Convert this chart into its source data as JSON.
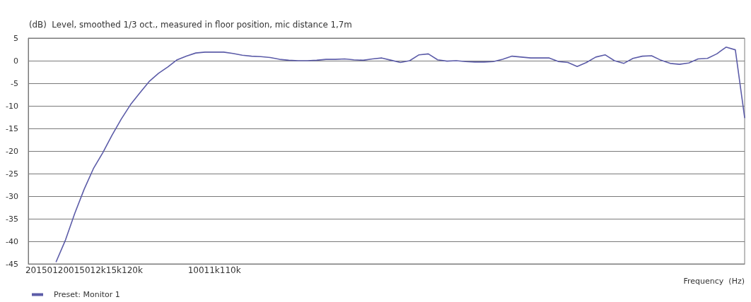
{
  "chart_data": {
    "type": "line",
    "subtitle": "(dB)  Level, smoothed 1/3 oct., measured in floor position, mic distance 1,7m",
    "xlabel": "Frequency  (Hz)",
    "categories": [
      null,
      null,
      null,
      null,
      null,
      null,
      "20150120015012k15k120k",
      null,
      null,
      null,
      null,
      null,
      null,
      null,
      null,
      null,
      null,
      null,
      null,
      null,
      "10011k110k",
      null,
      null,
      null,
      null,
      null,
      null,
      null,
      null,
      null,
      null,
      null,
      null,
      null,
      null,
      null,
      null,
      null,
      null,
      null,
      null,
      null,
      null,
      null,
      null,
      null,
      null,
      null,
      null,
      null,
      null,
      null,
      null,
      null,
      null,
      null,
      null,
      null,
      null,
      null,
      null,
      null,
      null,
      null,
      null,
      null,
      null,
      null,
      null,
      null,
      null,
      null,
      null,
      null,
      null,
      null,
      null,
      null
    ],
    "series": [
      {
        "name": "Preset: Monitor 1",
        "color": "#5c5ca8",
        "values": [
          null,
          null,
          null,
          -44.5,
          -39.7,
          -33.8,
          -28.5,
          -23.9,
          -20.4,
          -16.5,
          -12.9,
          -9.7,
          -7.1,
          -4.6,
          -2.8,
          -1.4,
          0.2,
          1.0,
          1.7,
          1.9,
          1.9,
          1.9,
          1.6,
          1.2,
          1.0,
          0.9,
          0.7,
          0.3,
          0.1,
          0,
          0,
          0.1,
          0.3,
          0.3,
          0.4,
          0.2,
          0.1,
          0.4,
          0.6,
          0.1,
          -0.4,
          0,
          1.3,
          1.5,
          0.2,
          -0.1,
          0,
          -0.2,
          -0.3,
          -0.3,
          -0.2,
          0.3,
          1.0,
          0.8,
          0.6,
          0.6,
          0.6,
          -0.2,
          -0.4,
          -1.3,
          -0.4,
          0.8,
          1.3,
          0,
          -0.6,
          0.5,
          1.0,
          1.1,
          0.1,
          -0.6,
          -0.8,
          -0.5,
          0.4,
          0.5,
          1.5,
          3.0,
          2.4,
          -12.6
        ]
      }
    ],
    "ylim": [
      -45,
      5
    ],
    "yticks": [
      -45,
      -40,
      -35,
      -30,
      -25,
      -20,
      -15,
      -10,
      -5,
      0,
      5
    ],
    "grid": "y",
    "legend": "bottom left"
  }
}
